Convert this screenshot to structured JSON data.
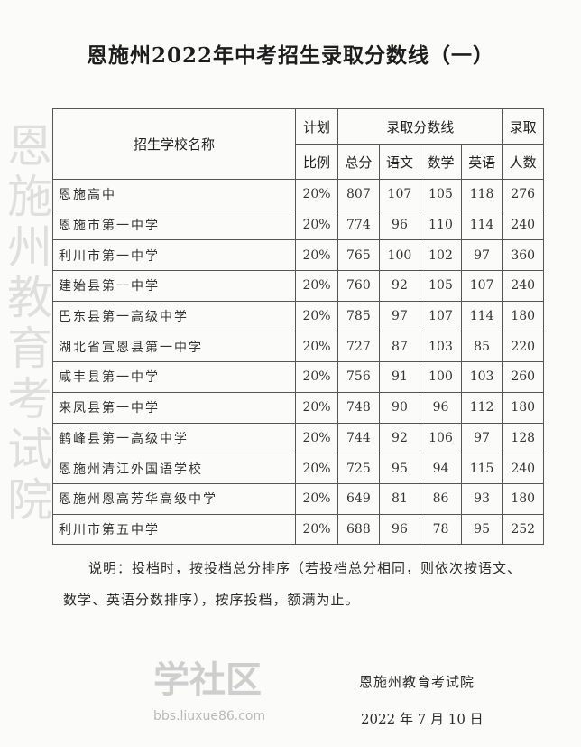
{
  "title": "恩施州2022年中考招生录取分数线（一）",
  "table": {
    "headers": {
      "school": "招生学校名称",
      "plan_ratio_1": "计划",
      "plan_ratio_2": "比例",
      "scores": "录取分数线",
      "total": "总分",
      "chinese": "语文",
      "math": "数学",
      "english": "英语",
      "admit_1": "录取",
      "admit_2": "人数"
    },
    "rows": [
      [
        "恩施高中",
        "20%",
        "807",
        "107",
        "105",
        "118",
        "276"
      ],
      [
        "恩施市第一中学",
        "20%",
        "774",
        "96",
        "110",
        "114",
        "240"
      ],
      [
        "利川市第一中学",
        "20%",
        "765",
        "100",
        "102",
        "97",
        "360"
      ],
      [
        "建始县第一中学",
        "20%",
        "760",
        "92",
        "105",
        "107",
        "240"
      ],
      [
        "巴东县第一高级中学",
        "20%",
        "785",
        "97",
        "107",
        "114",
        "180"
      ],
      [
        "湖北省宣恩县第一中学",
        "20%",
        "727",
        "87",
        "103",
        "85",
        "220"
      ],
      [
        "咸丰县第一中学",
        "20%",
        "756",
        "91",
        "100",
        "103",
        "260"
      ],
      [
        "来凤县第一中学",
        "20%",
        "748",
        "90",
        "96",
        "112",
        "180"
      ],
      [
        "鹤峰县第一高级中学",
        "20%",
        "744",
        "92",
        "106",
        "97",
        "128"
      ],
      [
        "恩施州清江外国语学校",
        "20%",
        "725",
        "95",
        "94",
        "115",
        "240"
      ],
      [
        "恩施州恩高芳华高级中学",
        "20%",
        "649",
        "81",
        "86",
        "93",
        "180"
      ],
      [
        "利川市第五中学",
        "20%",
        "688",
        "96",
        "78",
        "95",
        "252"
      ]
    ]
  },
  "note": "说明：投档时，按投档总分排序（若投档总分相同，则依次按语文、数学、英语分数排序），按序投档，额满为止。",
  "signature": "恩施州教育考试院",
  "date": "2022 年 7 月 10 日",
  "watermark": "恩施州教育考试院",
  "site_logo": "学社区",
  "site_url": "bbs.liuxue86.com"
}
